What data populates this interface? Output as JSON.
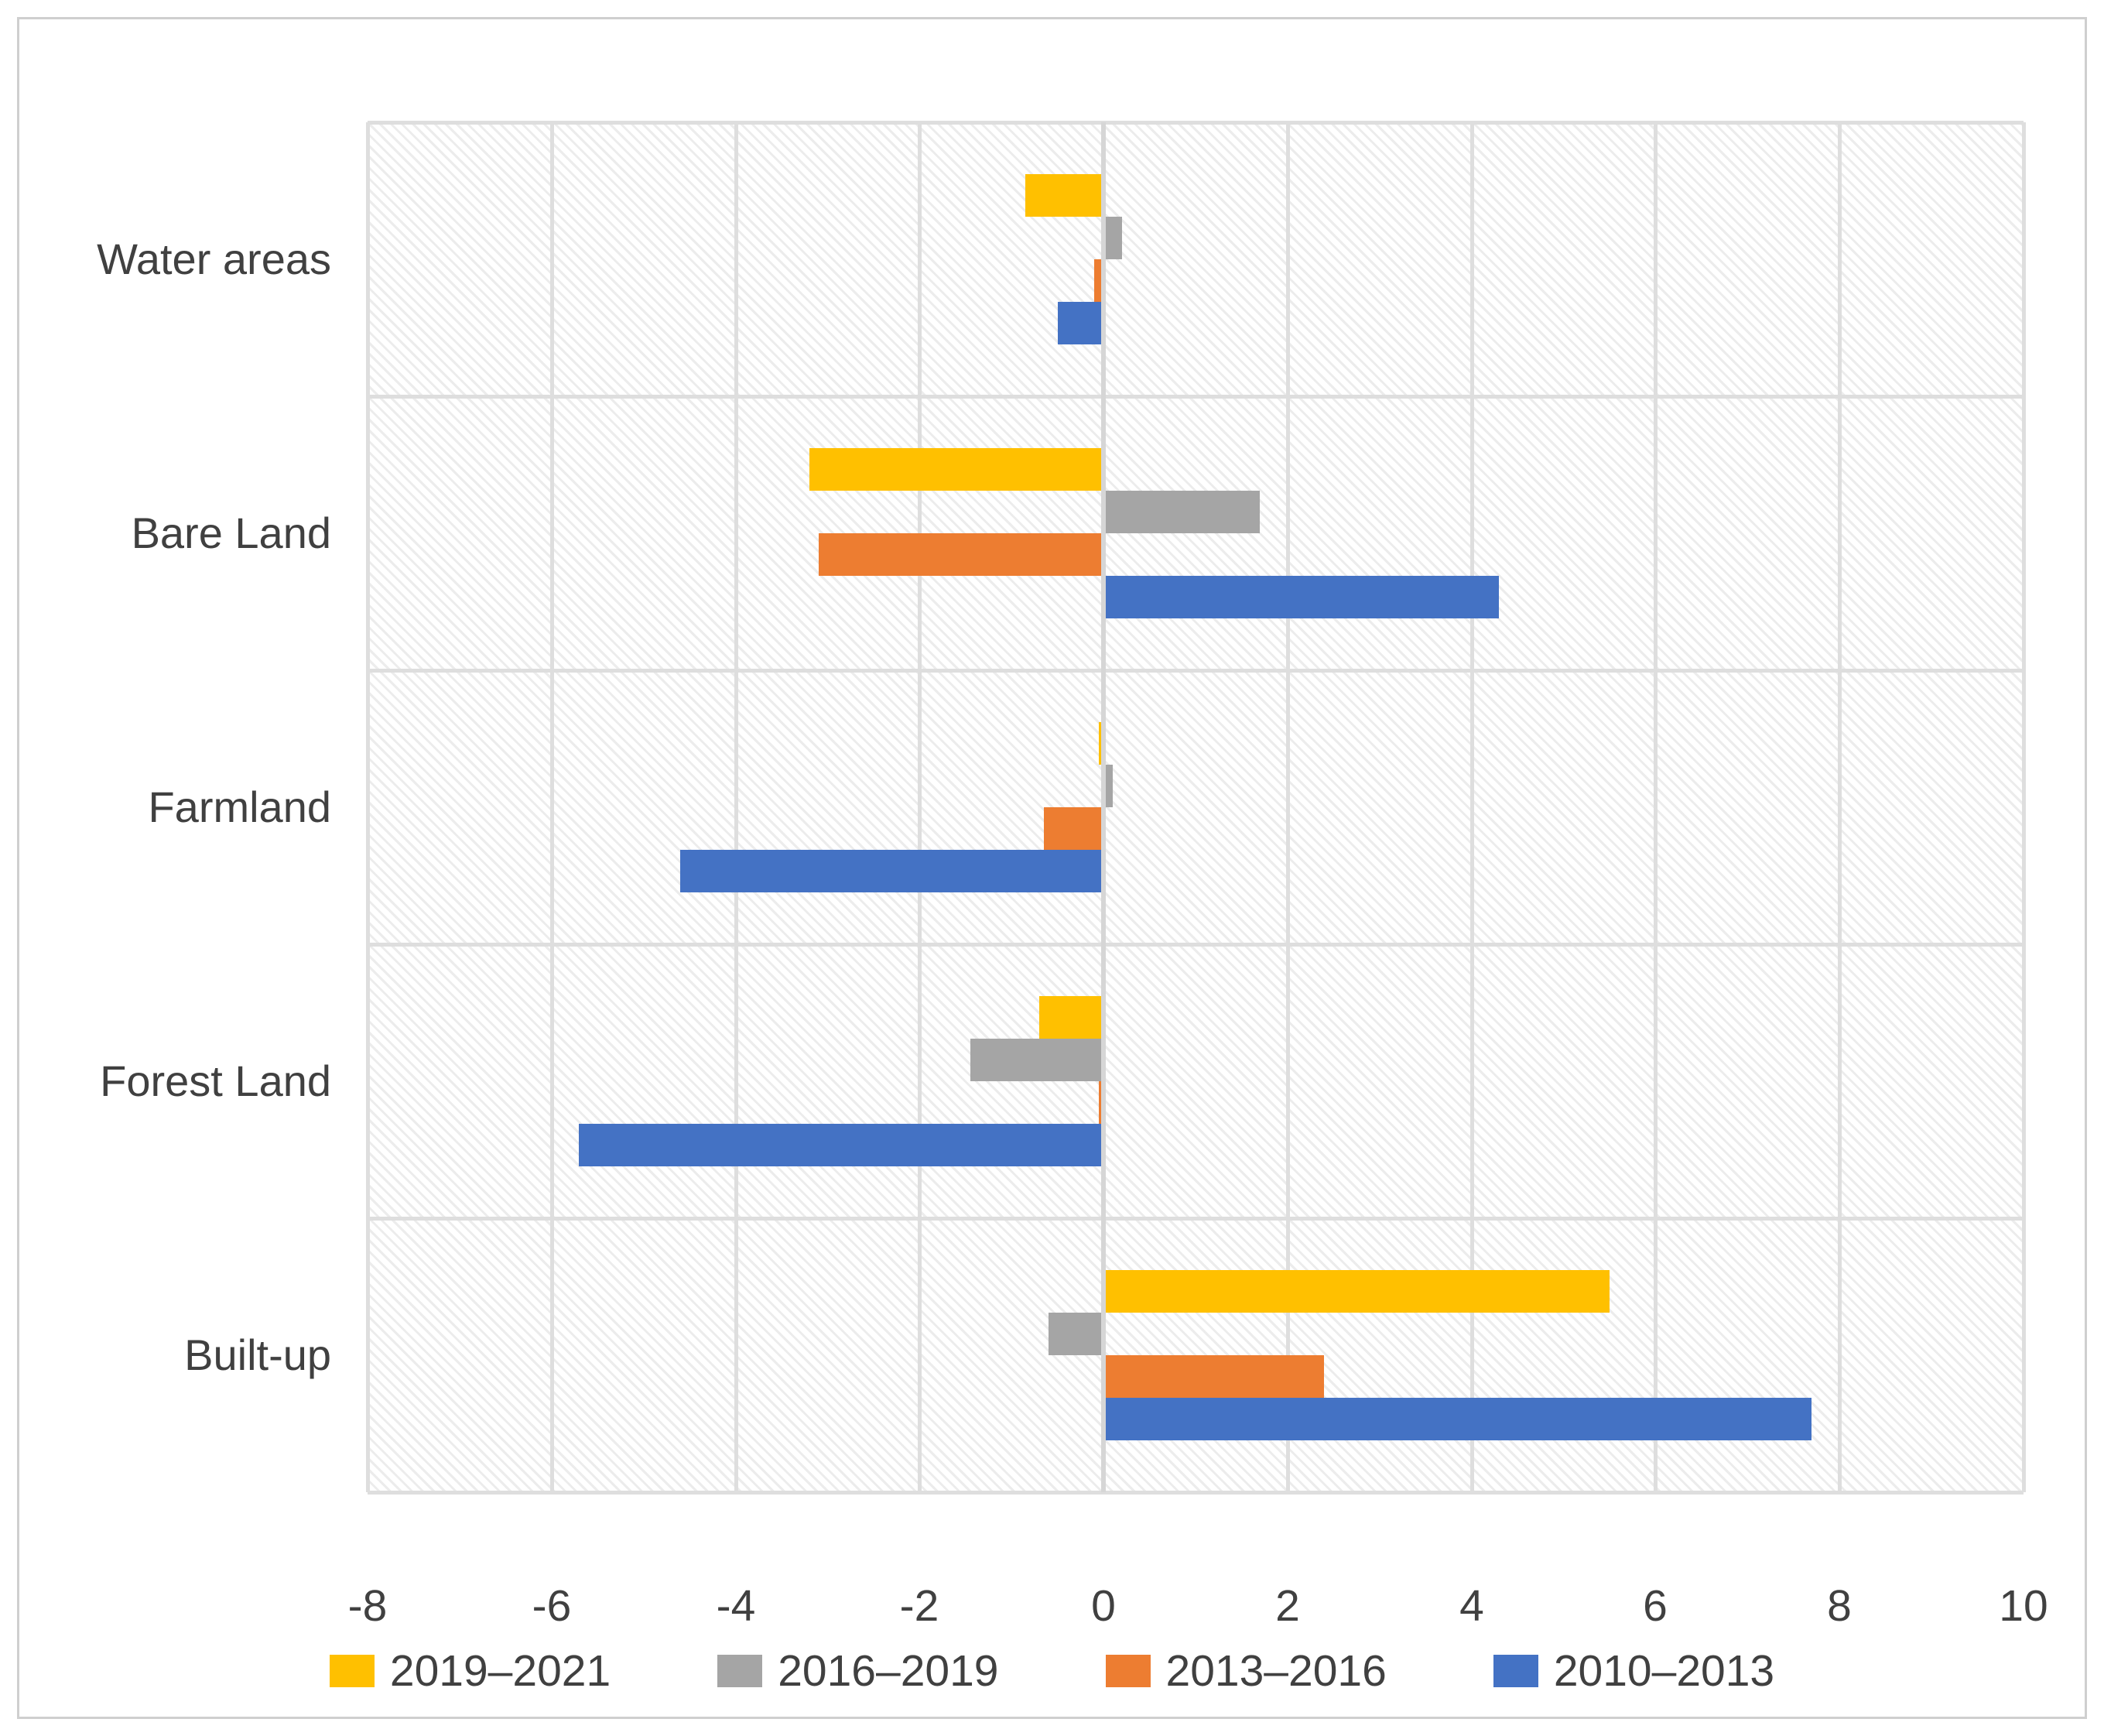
{
  "chart_data": {
    "type": "bar",
    "orientation": "horizontal",
    "title": "",
    "xlabel": "",
    "ylabel": "",
    "grid": "on",
    "legend_position": "bottom",
    "plot_background": "diagonal-hatch",
    "categories": [
      "Water areas",
      "Bare Land",
      "Farmland",
      "Forest Land",
      "Built-up"
    ],
    "series": [
      {
        "name": "2019–2021",
        "color": "#FFC000",
        "values": [
          -0.85,
          -3.2,
          -0.05,
          -0.7,
          5.5
        ]
      },
      {
        "name": "2016–2019",
        "color": "#A5A5A5",
        "values": [
          0.2,
          1.7,
          0.1,
          -1.45,
          -0.6
        ]
      },
      {
        "name": "2013–2016",
        "color": "#ED7D31",
        "values": [
          -0.1,
          -3.1,
          -0.65,
          -0.05,
          2.4
        ]
      },
      {
        "name": "2010–2013",
        "color": "#4472C4",
        "values": [
          -0.5,
          4.3,
          -4.6,
          -5.7,
          7.7
        ]
      }
    ],
    "x_axis": {
      "min": -8,
      "max": 10,
      "tick_step": 2,
      "tick_labels": [
        "-8",
        "-6",
        "-4",
        "-2",
        "0",
        "2",
        "4",
        "6",
        "8",
        "10"
      ]
    }
  },
  "theme": {
    "text_color": "#404040",
    "gridline_color": "#dedede",
    "zero_line_color": "#d6d6d6",
    "frame_border_color": "#cfcfcf",
    "background_color": "#ffffff",
    "hatch_line_color": "#ececec"
  }
}
